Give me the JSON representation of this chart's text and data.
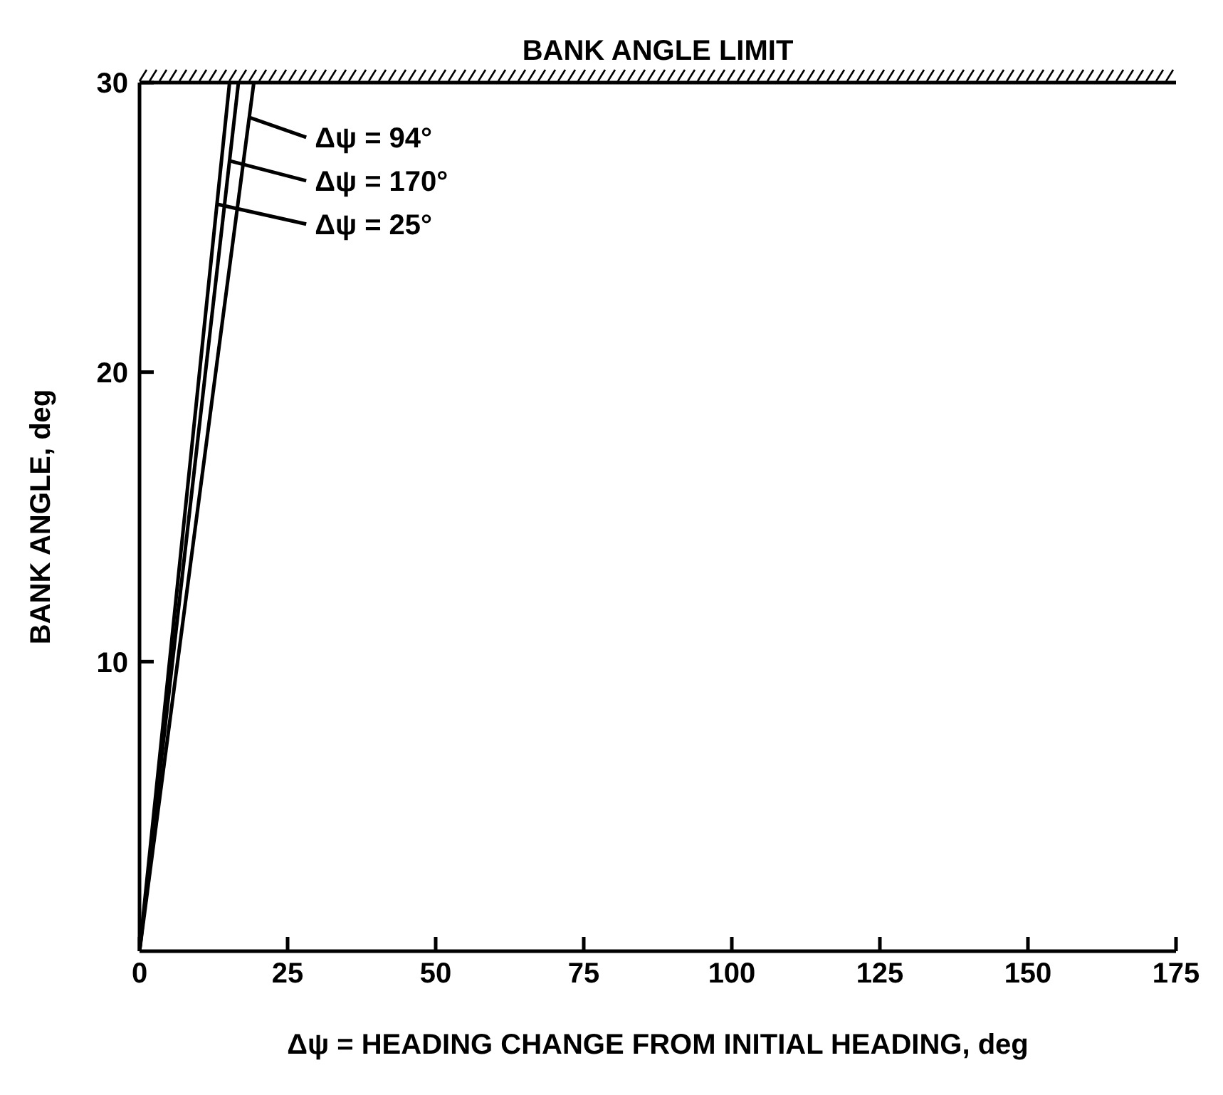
{
  "chart_data": {
    "type": "line",
    "xlabel": "Δψ = HEADING CHANGE FROM INITIAL HEADING, deg",
    "ylabel": "BANK ANGLE, deg",
    "series": [
      {
        "name": "Δψ = 94°",
        "color": "#000000",
        "x": [
          0,
          19.3
        ],
        "values": [
          0,
          30
        ]
      },
      {
        "name": "Δψ = 170°",
        "color": "#000000",
        "x": [
          0,
          16.7
        ],
        "values": [
          0,
          30
        ]
      },
      {
        "name": "Δψ = 25°",
        "color": "#000000",
        "x": [
          0,
          15.2
        ],
        "values": [
          0,
          30
        ]
      }
    ],
    "xlim": [
      0,
      175
    ],
    "xticks": [
      0,
      25,
      50,
      75,
      100,
      125,
      150,
      175
    ],
    "ylim": [
      0,
      30
    ],
    "yticks": [
      10,
      20,
      30
    ],
    "ref_lines": [
      {
        "axis": "y",
        "value": 30,
        "label": "BANK ANGLE LIMIT",
        "line_style": "solid"
      }
    ],
    "grid": false,
    "legend": "top left",
    "marker": "none",
    "line_style": "solid"
  }
}
